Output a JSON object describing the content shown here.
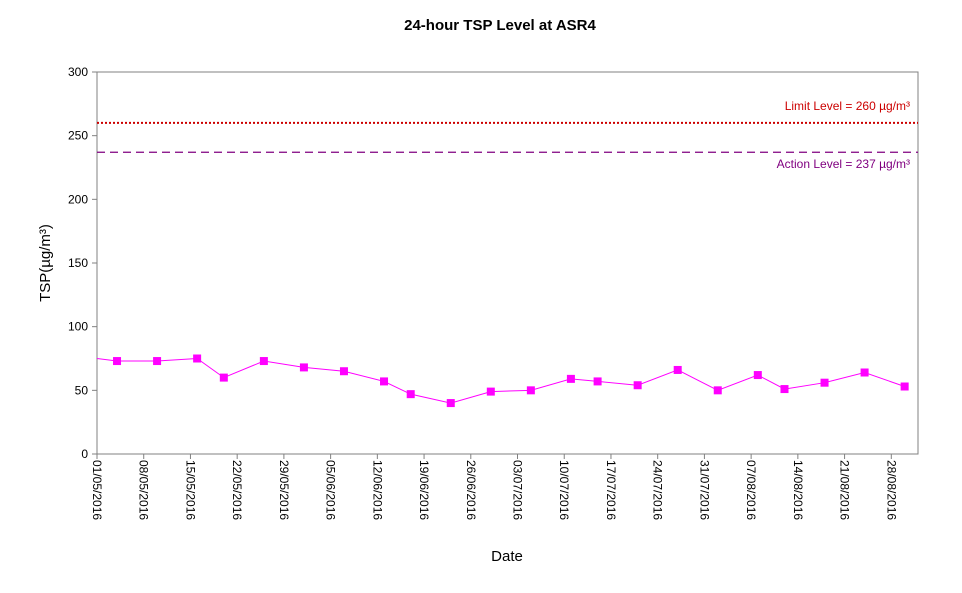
{
  "chart_data": {
    "type": "line",
    "title": "24-hour TSP Level at ASR4",
    "xlabel": "Date",
    "ylabel": "TSP(µg/m³)",
    "ylim": [
      0,
      300
    ],
    "yticks": [
      "0",
      "50",
      "100",
      "150",
      "200",
      "250",
      "300"
    ],
    "xlim": [
      "2016-05-01",
      "2016-09-01"
    ],
    "xticks": [
      "01/05/2016",
      "08/05/2016",
      "15/05/2016",
      "22/05/2016",
      "29/05/2016",
      "05/06/2016",
      "12/06/2016",
      "19/06/2016",
      "26/06/2016",
      "03/07/2016",
      "10/07/2016",
      "17/07/2016",
      "24/07/2016",
      "31/07/2016",
      "07/08/2016",
      "14/08/2016",
      "21/08/2016",
      "28/08/2016"
    ],
    "grid": false,
    "series": [
      {
        "color": "#FF00FF",
        "marker": "square",
        "points": [
          {
            "x": "2016-05-01",
            "y": 75
          },
          {
            "x": "2016-05-04",
            "y": 73
          },
          {
            "x": "2016-05-10",
            "y": 73
          },
          {
            "x": "2016-05-16",
            "y": 75
          },
          {
            "x": "2016-05-20",
            "y": 60
          },
          {
            "x": "2016-05-26",
            "y": 73
          },
          {
            "x": "2016-06-01",
            "y": 68
          },
          {
            "x": "2016-06-07",
            "y": 65
          },
          {
            "x": "2016-06-13",
            "y": 57
          },
          {
            "x": "2016-06-17",
            "y": 47
          },
          {
            "x": "2016-06-23",
            "y": 40
          },
          {
            "x": "2016-06-29",
            "y": 49
          },
          {
            "x": "2016-07-05",
            "y": 50
          },
          {
            "x": "2016-07-11",
            "y": 59
          },
          {
            "x": "2016-07-15",
            "y": 57
          },
          {
            "x": "2016-07-21",
            "y": 54
          },
          {
            "x": "2016-07-27",
            "y": 66
          },
          {
            "x": "2016-08-02",
            "y": 50
          },
          {
            "x": "2016-08-08",
            "y": 62
          },
          {
            "x": "2016-08-12",
            "y": 51
          },
          {
            "x": "2016-08-18",
            "y": 56
          },
          {
            "x": "2016-08-24",
            "y": 64
          },
          {
            "x": "2016-08-30",
            "y": 53
          }
        ]
      }
    ],
    "reference_lines": [
      {
        "label": "Limit Level  = 260 µg/m³",
        "value": 260,
        "color": "#CC0000",
        "style": "dotted"
      },
      {
        "label": "Action Level  = 237 µg/m³",
        "value": 237,
        "color": "#800080",
        "style": "dashed"
      }
    ]
  }
}
